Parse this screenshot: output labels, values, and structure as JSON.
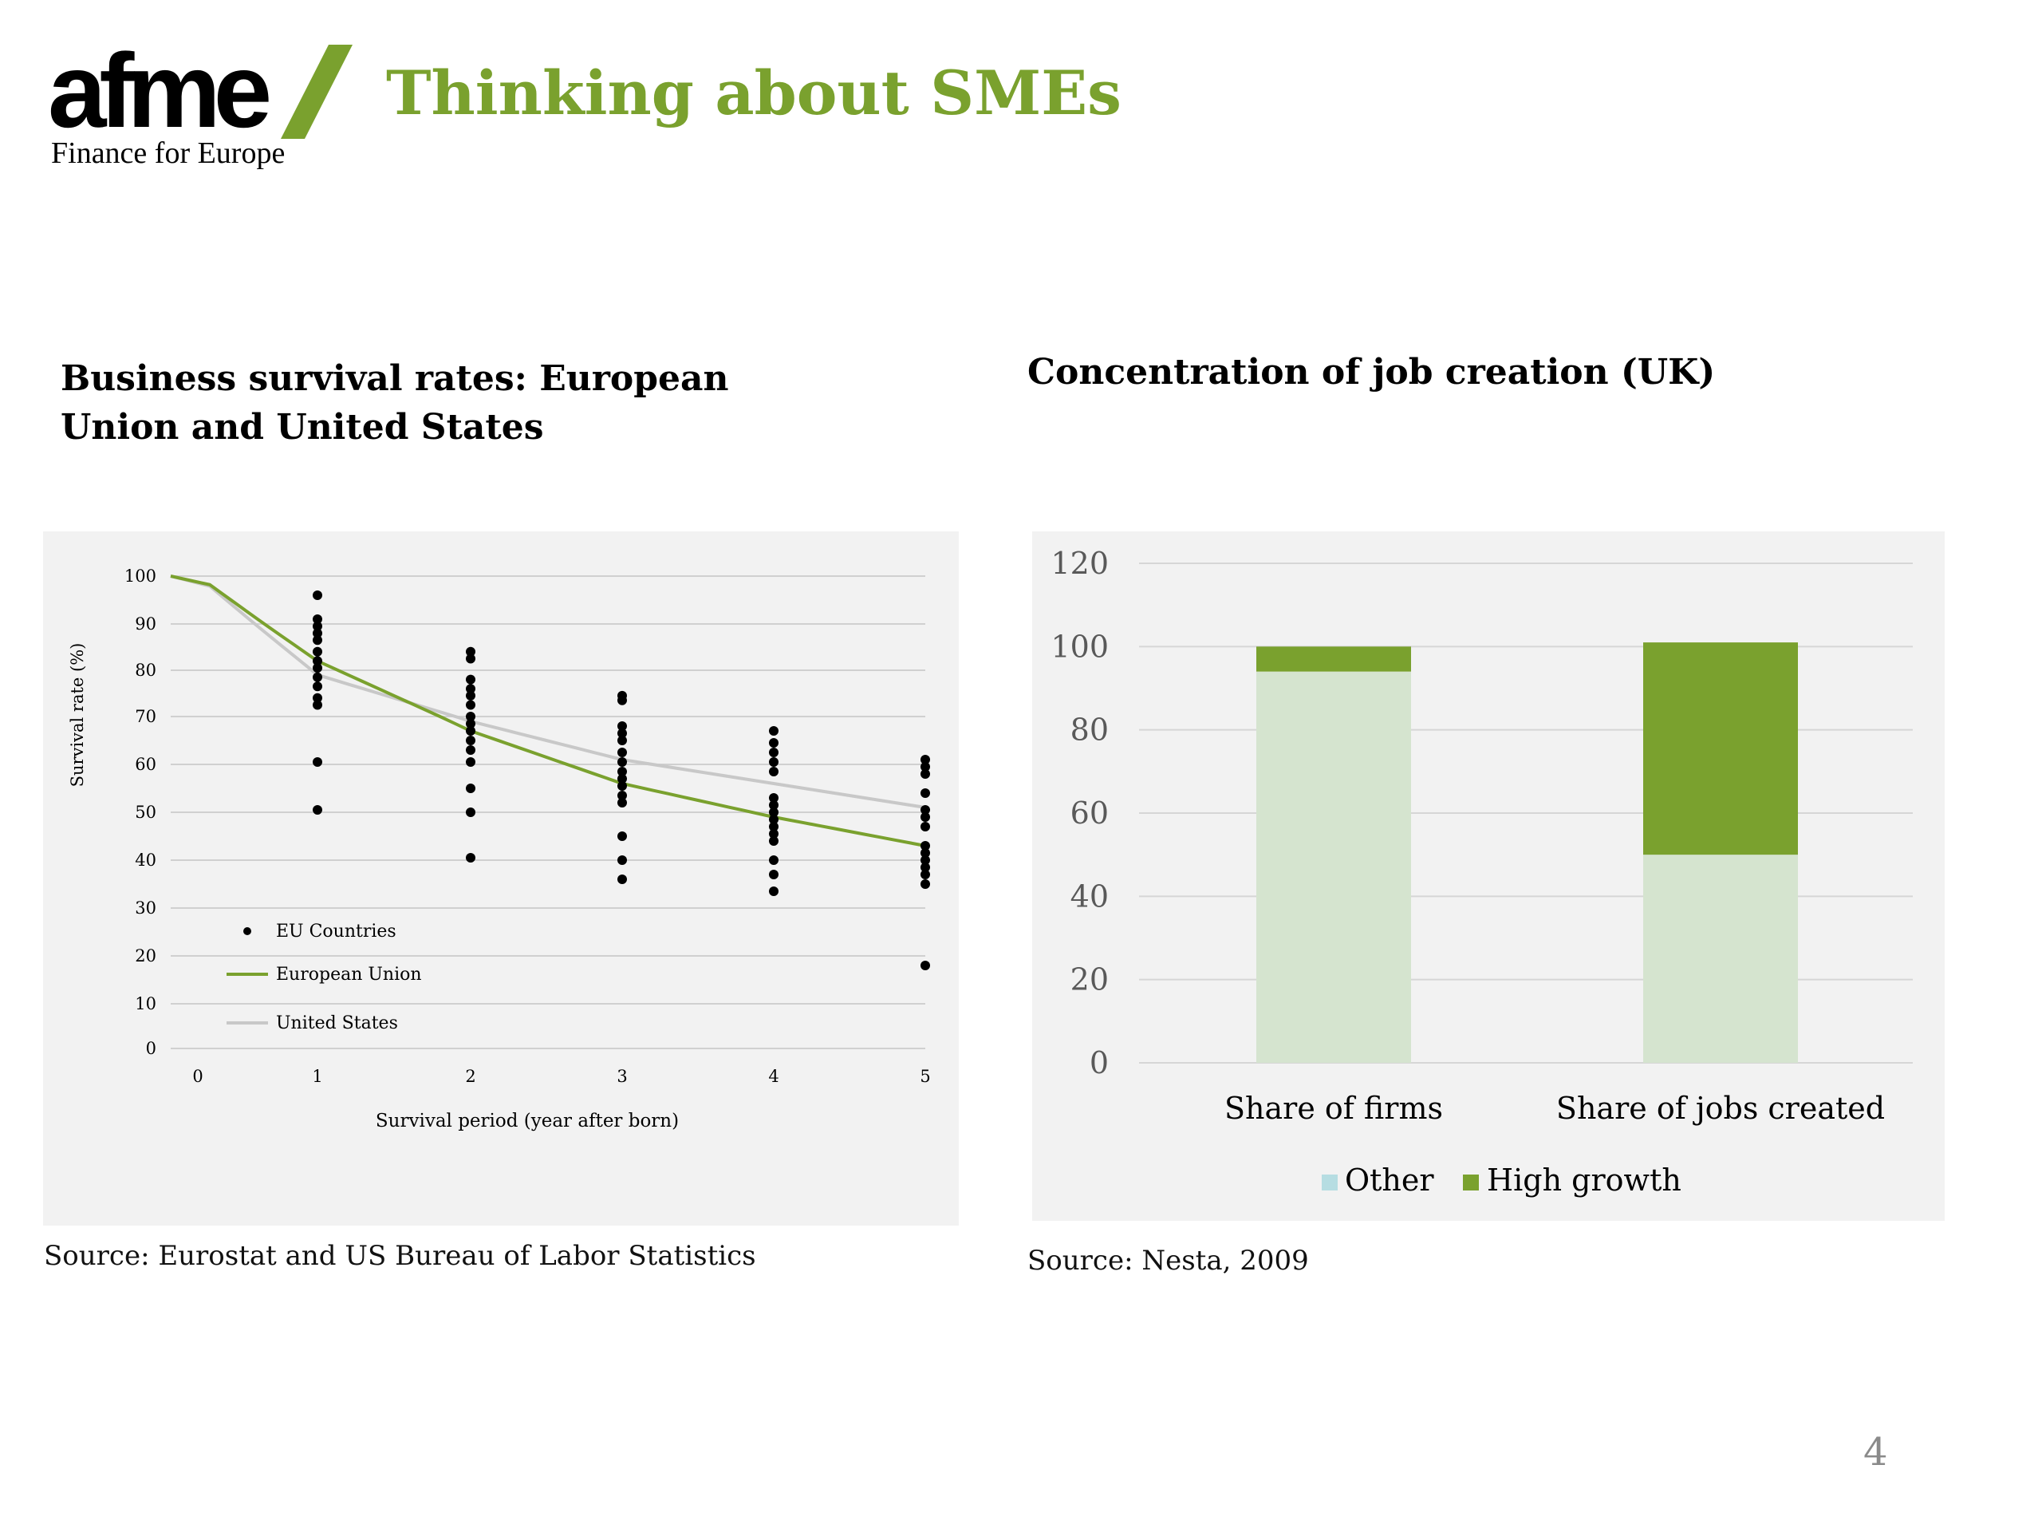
{
  "header": {
    "logo_word": "afme",
    "logo_tagline": "Finance for Europe",
    "title": "Thinking about SMEs"
  },
  "colors": {
    "accent_green": "#7aa12e",
    "light_green": "#d5e4cf",
    "gray_line": "#c8c8c8",
    "panel_bg": "#f2f2f2",
    "legend_other": "#b6dde2"
  },
  "chart_data": [
    {
      "type": "scatter",
      "title": "Business survival rates: European Union and United States",
      "xlabel": "Survival period (year after born)",
      "ylabel": "Survival rate (%)",
      "x_ticks": [
        "0",
        "1",
        "2",
        "3",
        "4",
        "5"
      ],
      "y_ticks": [
        "0",
        "10",
        "20",
        "30",
        "40",
        "50",
        "60",
        "70",
        "80",
        "90",
        "100"
      ],
      "xlim": [
        0,
        5
      ],
      "ylim": [
        0,
        100
      ],
      "grid": true,
      "legend_position": "bottom-left",
      "legend": [
        "EU Countries",
        "European Union",
        "United States"
      ],
      "scatter_series": {
        "name": "EU Countries",
        "points": [
          [
            1,
            96
          ],
          [
            1,
            91
          ],
          [
            1,
            89.5
          ],
          [
            1,
            88
          ],
          [
            1,
            86.5
          ],
          [
            1,
            84
          ],
          [
            1,
            82
          ],
          [
            1,
            80.5
          ],
          [
            1,
            78.5
          ],
          [
            1,
            76.5
          ],
          [
            1,
            74
          ],
          [
            1,
            72.5
          ],
          [
            1,
            60.5
          ],
          [
            1,
            50.5
          ],
          [
            2,
            84
          ],
          [
            2,
            82.5
          ],
          [
            2,
            78
          ],
          [
            2,
            76
          ],
          [
            2,
            74.5
          ],
          [
            2,
            72.5
          ],
          [
            2,
            70
          ],
          [
            2,
            68.5
          ],
          [
            2,
            67
          ],
          [
            2,
            65
          ],
          [
            2,
            63
          ],
          [
            2,
            60.5
          ],
          [
            2,
            55
          ],
          [
            2,
            50
          ],
          [
            2,
            40.5
          ],
          [
            3,
            74.5
          ],
          [
            3,
            73.5
          ],
          [
            3,
            68
          ],
          [
            3,
            66.5
          ],
          [
            3,
            65
          ],
          [
            3,
            62.5
          ],
          [
            3,
            60.5
          ],
          [
            3,
            58.5
          ],
          [
            3,
            57
          ],
          [
            3,
            55.5
          ],
          [
            3,
            53.5
          ],
          [
            3,
            52
          ],
          [
            3,
            45
          ],
          [
            3,
            40
          ],
          [
            3,
            36
          ],
          [
            4,
            67
          ],
          [
            4,
            64.5
          ],
          [
            4,
            62.5
          ],
          [
            4,
            60.5
          ],
          [
            4,
            58.5
          ],
          [
            4,
            53
          ],
          [
            4,
            51.5
          ],
          [
            4,
            50
          ],
          [
            4,
            48.5
          ],
          [
            4,
            47
          ],
          [
            4,
            45.5
          ],
          [
            4,
            44
          ],
          [
            4,
            40
          ],
          [
            4,
            37
          ],
          [
            4,
            33.5
          ],
          [
            5,
            61
          ],
          [
            5,
            59.5
          ],
          [
            5,
            58
          ],
          [
            5,
            54
          ],
          [
            5,
            50.5
          ],
          [
            5,
            49
          ],
          [
            5,
            47
          ],
          [
            5,
            43
          ],
          [
            5,
            41.5
          ],
          [
            5,
            40
          ],
          [
            5,
            38.5
          ],
          [
            5,
            37
          ],
          [
            5,
            35
          ],
          [
            5,
            18
          ]
        ]
      },
      "line_series": [
        {
          "name": "European Union",
          "color": "#7aa12e",
          "x": [
            0,
            1,
            2,
            3,
            4,
            5
          ],
          "y": [
            100,
            82,
            67,
            56,
            49,
            43
          ]
        },
        {
          "name": "United States",
          "color": "#c8c8c8",
          "x": [
            0,
            1,
            2,
            3,
            4,
            5
          ],
          "y": [
            100,
            79,
            69,
            61,
            56,
            51
          ]
        }
      ],
      "source": "Source: Eurostat and US Bureau of Labor Statistics"
    },
    {
      "type": "bar",
      "stacked": true,
      "title": "Concentration of job creation (UK)",
      "categories": [
        "Share of firms",
        "Share of jobs created"
      ],
      "series": [
        {
          "name": "Other",
          "values": [
            94,
            50
          ]
        },
        {
          "name": "High growth",
          "values": [
            6,
            51
          ]
        }
      ],
      "y_ticks": [
        "0",
        "20",
        "40",
        "60",
        "80",
        "100",
        "120"
      ],
      "ylim": [
        0,
        120
      ],
      "grid": true,
      "legend_position": "bottom",
      "legend": [
        "Other",
        "High growth"
      ],
      "source": "Source: Nesta, 2009"
    }
  ],
  "footer": {
    "page_number": "4"
  }
}
